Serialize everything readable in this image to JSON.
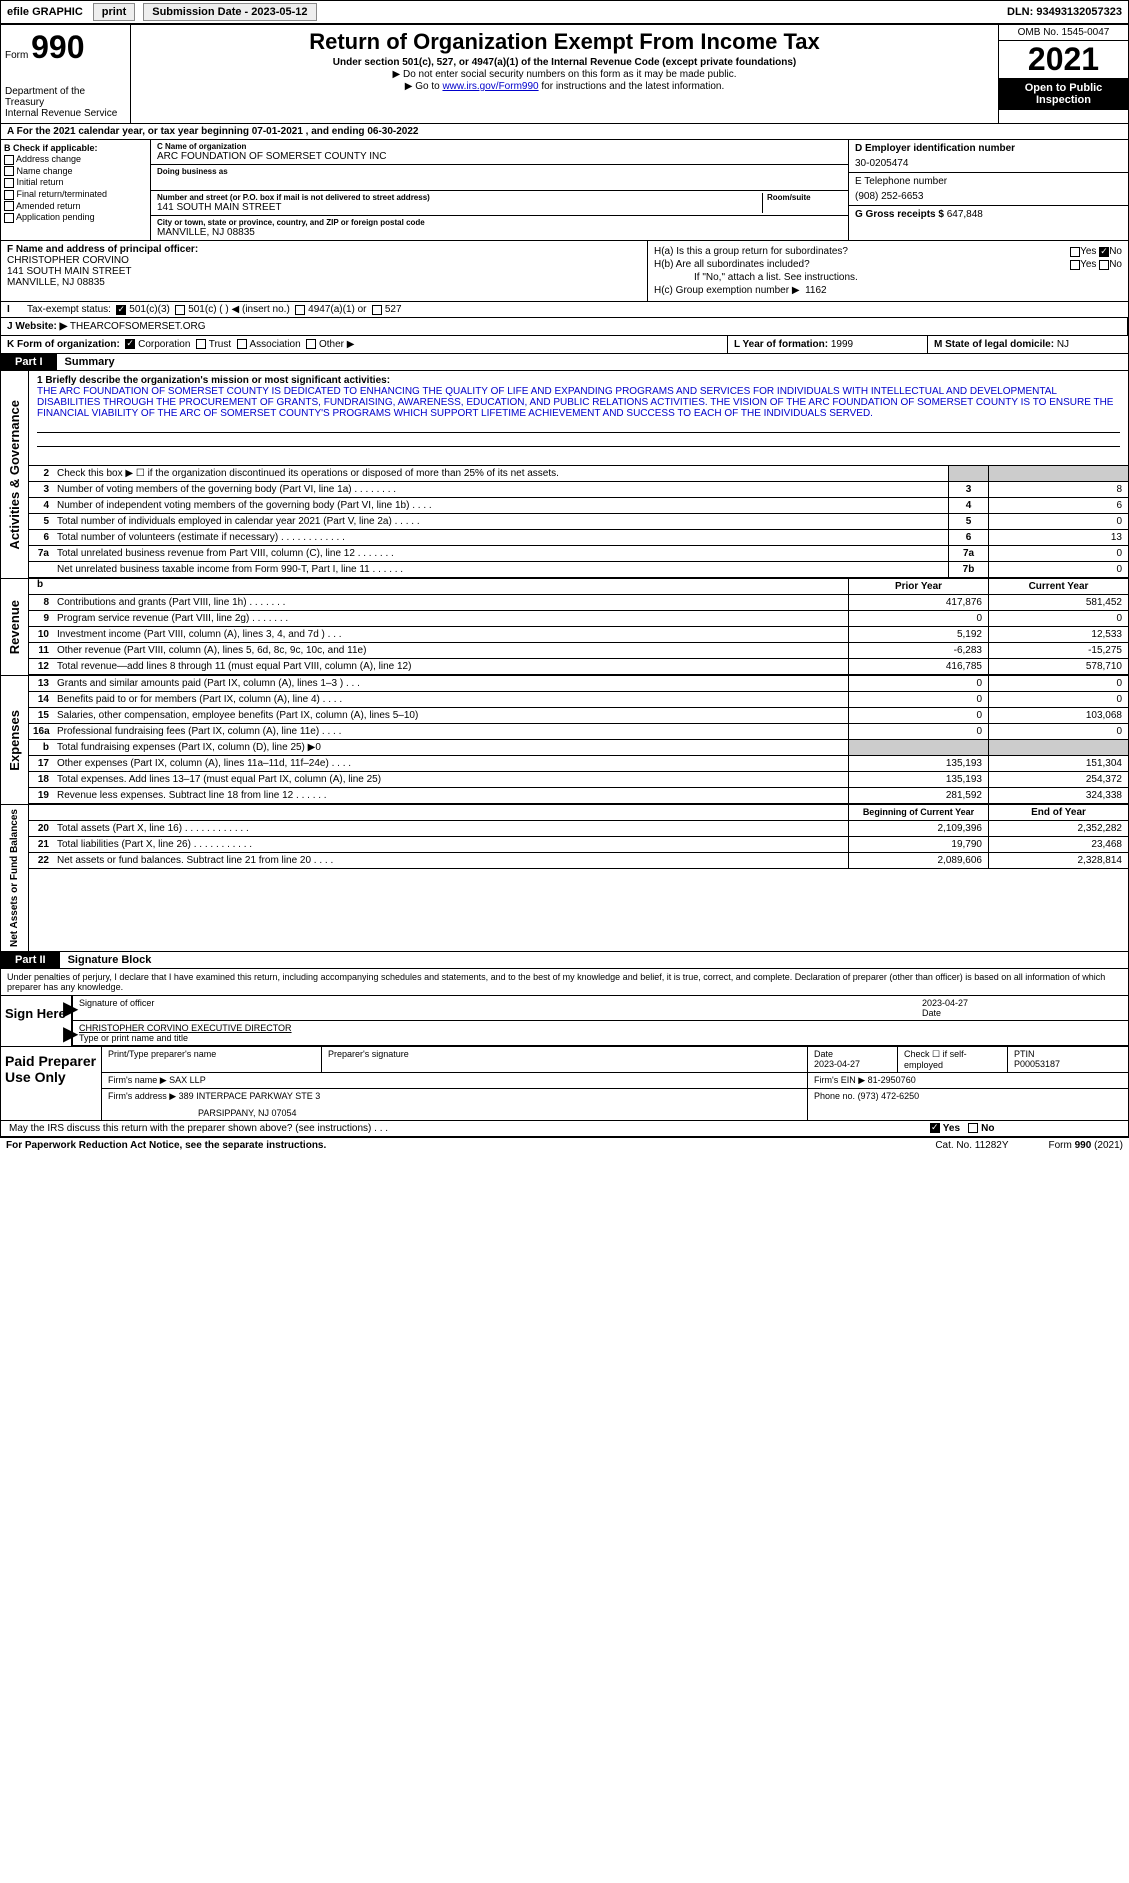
{
  "topbar": {
    "efile": "efile GRAPHIC",
    "print": "print",
    "sub_label": "Submission Date - 2023-05-12",
    "dln": "DLN: 93493132057323"
  },
  "header": {
    "form_word": "Form",
    "form_num": "990",
    "dept": "Department of the Treasury",
    "irs": "Internal Revenue Service",
    "title": "Return of Organization Exempt From Income Tax",
    "sub1": "Under section 501(c), 527, or 4947(a)(1) of the Internal Revenue Code (except private foundations)",
    "sub2": "▶ Do not enter social security numbers on this form as it may be made public.",
    "sub3_pre": "▶ Go to ",
    "sub3_link": "www.irs.gov/Form990",
    "sub3_post": " for instructions and the latest information.",
    "omb": "OMB No. 1545-0047",
    "year": "2021",
    "inspect1": "Open to Public",
    "inspect2": "Inspection"
  },
  "row_a": "A For the 2021 calendar year, or tax year beginning 07-01-2021   , and ending 06-30-2022",
  "col_b": {
    "hdr": "B Check if applicable:",
    "opts": [
      "Address change",
      "Name change",
      "Initial return",
      "Final return/terminated",
      "Amended return",
      "Application pending"
    ]
  },
  "col_c": {
    "name_lbl": "C Name of organization",
    "name": "ARC FOUNDATION OF SOMERSET COUNTY INC",
    "dba_lbl": "Doing business as",
    "dba": "",
    "addr_lbl": "Number and street (or P.O. box if mail is not delivered to street address)",
    "addr": "141 SOUTH MAIN STREET",
    "room_lbl": "Room/suite",
    "city_lbl": "City or town, state or province, country, and ZIP or foreign postal code",
    "city": "MANVILLE, NJ  08835"
  },
  "col_d": {
    "ein_lbl": "D Employer identification number",
    "ein": "30-0205474",
    "tel_lbl": "E Telephone number",
    "tel": "(908) 252-6653",
    "gross_lbl": "G Gross receipts $",
    "gross": "647,848"
  },
  "row_f": {
    "lbl": "F Name and address of principal officer:",
    "name": "CHRISTOPHER CORVINO",
    "addr": "141 SOUTH MAIN STREET",
    "city": "MANVILLE, NJ  08835"
  },
  "row_h": {
    "ha": "H(a)  Is this a group return for subordinates?",
    "hb": "H(b)  Are all subordinates included?",
    "hb_note": "If \"No,\" attach a list. See instructions.",
    "hc": "H(c)  Group exemption number ▶",
    "hc_val": "1162",
    "yes": "Yes",
    "no": "No"
  },
  "row_i": {
    "lbl": "Tax-exempt status:",
    "o1": "501(c)(3)",
    "o2": "501(c) (   ) ◀ (insert no.)",
    "o3": "4947(a)(1) or",
    "o4": "527"
  },
  "row_j": {
    "web_lbl": "J  Website: ▶",
    "web": "THEARCOFSOMERSET.ORG"
  },
  "row_k": {
    "lbl": "K Form of organization:",
    "corp": "Corporation",
    "trust": "Trust",
    "assoc": "Association",
    "other": "Other ▶",
    "l_lbl": "L Year of formation:",
    "l_val": "1999",
    "m_lbl": "M State of legal domicile:",
    "m_val": "NJ"
  },
  "part1": {
    "num": "Part I",
    "title": "Summary"
  },
  "mission": {
    "intro": "1  Briefly describe the organization's mission or most significant activities:",
    "text": "THE ARC FOUNDATION OF SOMERSET COUNTY IS DEDICATED TO ENHANCING THE QUALITY OF LIFE AND EXPANDING PROGRAMS AND SERVICES FOR INDIVIDUALS WITH INTELLECTUAL AND DEVELOPMENTAL DISABILITIES THROUGH THE PROCUREMENT OF GRANTS, FUNDRAISING, AWARENESS, EDUCATION, AND PUBLIC RELATIONS ACTIVITIES. THE VISION OF THE ARC FOUNDATION OF SOMERSET COUNTY IS TO ENSURE THE FINANCIAL VIABILITY OF THE ARC OF SOMERSET COUNTY'S PROGRAMS WHICH SUPPORT LIFETIME ACHIEVEMENT AND SUCCESS TO EACH OF THE INDIVIDUALS SERVED."
  },
  "side_labels": {
    "ag": "Activities & Governance",
    "rev": "Revenue",
    "exp": "Expenses",
    "net": "Net Assets or Fund Balances"
  },
  "lines_ag": [
    {
      "n": "2",
      "desc": "Check this box ▶ ☐ if the organization discontinued its operations or disposed of more than 25% of its net assets.",
      "box": "",
      "val": ""
    },
    {
      "n": "3",
      "desc": "Number of voting members of the governing body (Part VI, line 1a)  .   .   .   .   .   .   .   .",
      "box": "3",
      "val": "8"
    },
    {
      "n": "4",
      "desc": "Number of independent voting members of the governing body (Part VI, line 1b)  .   .   .   .",
      "box": "4",
      "val": "6"
    },
    {
      "n": "5",
      "desc": "Total number of individuals employed in calendar year 2021 (Part V, line 2a)  .   .   .   .   .",
      "box": "5",
      "val": "0"
    },
    {
      "n": "6",
      "desc": "Total number of volunteers (estimate if necessary)  .   .   .   .   .   .   .   .   .   .   .   .",
      "box": "6",
      "val": "13"
    },
    {
      "n": "7a",
      "desc": "Total unrelated business revenue from Part VIII, column (C), line 12  .   .   .   .   .   .   .",
      "box": "7a",
      "val": "0"
    },
    {
      "n": "",
      "desc": "Net unrelated business taxable income from Form 990-T, Part I, line 11  .   .   .   .   .   .",
      "box": "7b",
      "val": "0"
    }
  ],
  "col_hdrs": {
    "b": "b",
    "prior": "Prior Year",
    "current": "Current Year"
  },
  "lines_rev": [
    {
      "n": "8",
      "desc": "Contributions and grants (Part VIII, line 1h)   .   .   .   .   .   .   .",
      "p": "417,876",
      "c": "581,452"
    },
    {
      "n": "9",
      "desc": "Program service revenue (Part VIII, line 2g)   .   .   .   .   .   .   .",
      "p": "0",
      "c": "0"
    },
    {
      "n": "10",
      "desc": "Investment income (Part VIII, column (A), lines 3, 4, and 7d )   .   .   .",
      "p": "5,192",
      "c": "12,533"
    },
    {
      "n": "11",
      "desc": "Other revenue (Part VIII, column (A), lines 5, 6d, 8c, 9c, 10c, and 11e)",
      "p": "-6,283",
      "c": "-15,275"
    },
    {
      "n": "12",
      "desc": "Total revenue—add lines 8 through 11 (must equal Part VIII, column (A), line 12)",
      "p": "416,785",
      "c": "578,710"
    }
  ],
  "lines_exp": [
    {
      "n": "13",
      "desc": "Grants and similar amounts paid (Part IX, column (A), lines 1–3 )   .   .   .",
      "p": "0",
      "c": "0"
    },
    {
      "n": "14",
      "desc": "Benefits paid to or for members (Part IX, column (A), line 4)   .   .   .   .",
      "p": "0",
      "c": "0"
    },
    {
      "n": "15",
      "desc": "Salaries, other compensation, employee benefits (Part IX, column (A), lines 5–10)",
      "p": "0",
      "c": "103,068"
    },
    {
      "n": "16a",
      "desc": "Professional fundraising fees (Part IX, column (A), line 11e)   .   .   .   .",
      "p": "0",
      "c": "0"
    },
    {
      "n": "b",
      "desc": "Total fundraising expenses (Part IX, column (D), line 25) ▶0",
      "p": "",
      "c": "",
      "shaded": true
    },
    {
      "n": "17",
      "desc": "Other expenses (Part IX, column (A), lines 11a–11d, 11f–24e)   .   .   .   .",
      "p": "135,193",
      "c": "151,304"
    },
    {
      "n": "18",
      "desc": "Total expenses. Add lines 13–17 (must equal Part IX, column (A), line 25)",
      "p": "135,193",
      "c": "254,372"
    },
    {
      "n": "19",
      "desc": "Revenue less expenses. Subtract line 18 from line 12   .   .   .   .   .   .",
      "p": "281,592",
      "c": "324,338"
    }
  ],
  "col_hdrs2": {
    "prior": "Beginning of Current Year",
    "current": "End of Year"
  },
  "lines_net": [
    {
      "n": "20",
      "desc": "Total assets (Part X, line 16)   .   .   .   .   .   .   .   .   .   .   .   .",
      "p": "2,109,396",
      "c": "2,352,282"
    },
    {
      "n": "21",
      "desc": "Total liabilities (Part X, line 26)   .   .   .   .   .   .   .   .   .   .   .",
      "p": "19,790",
      "c": "23,468"
    },
    {
      "n": "22",
      "desc": "Net assets or fund balances. Subtract line 21 from line 20   .   .   .   .",
      "p": "2,089,606",
      "c": "2,328,814"
    }
  ],
  "part2": {
    "num": "Part II",
    "title": "Signature Block"
  },
  "perjury": "Under penalties of perjury, I declare that I have examined this return, including accompanying schedules and statements, and to the best of my knowledge and belief, it is true, correct, and complete. Declaration of preparer (other than officer) is based on all information of which preparer has any knowledge.",
  "sign": {
    "here": "Sign Here",
    "sig_lbl": "Signature of officer",
    "date_lbl": "Date",
    "date": "2023-04-27",
    "name": "CHRISTOPHER CORVINO  EXECUTIVE DIRECTOR",
    "name_lbl": "Type or print name and title"
  },
  "paid": {
    "title": "Paid Preparer Use Only",
    "r1": {
      "c1": "Print/Type preparer's name",
      "c2": "Preparer's signature",
      "c3_lbl": "Date",
      "c3": "2023-04-27",
      "c4": "Check ☐ if self-employed",
      "c5_lbl": "PTIN",
      "c5": "P00053187"
    },
    "r2": {
      "c1": "Firm's name   ▶",
      "c1v": "SAX LLP",
      "c2": "Firm's EIN ▶",
      "c2v": "81-2950760"
    },
    "r3": {
      "c1": "Firm's address ▶",
      "c1v": "389 INTERPACE PARKWAY STE 3",
      "c2": "Phone no.",
      "c2v": "(973) 472-6250"
    },
    "r3b": "PARSIPPANY, NJ  07054"
  },
  "discuss": {
    "q": "May the IRS discuss this return with the preparer shown above? (see instructions)   .   .   .",
    "yes": "Yes",
    "no": "No"
  },
  "footer": {
    "l": "For Paperwork Reduction Act Notice, see the separate instructions.",
    "c": "Cat. No. 11282Y",
    "r": "Form 990 (2021)"
  }
}
